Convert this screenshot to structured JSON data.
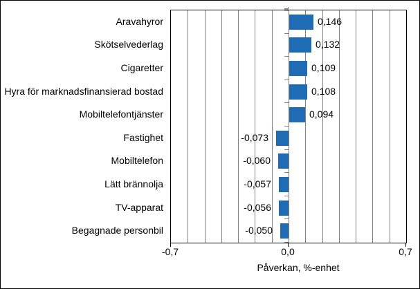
{
  "chart_data": {
    "type": "bar",
    "orientation": "horizontal",
    "title": "",
    "xlabel": "Påverkan, %-enhet",
    "ylabel": "",
    "categories": [
      "Aravahyror",
      "Skötselvederlag",
      "Cigaretter",
      "Hyra för marknadsfinansierad bostad",
      "Mobiltelefontjänster",
      "Fastighet",
      "Mobiltelefon",
      "Lätt brännolja",
      "TV-apparat",
      "Begagnade personbil"
    ],
    "values": [
      0.146,
      0.132,
      0.109,
      0.108,
      0.094,
      -0.073,
      -0.06,
      -0.057,
      -0.056,
      -0.05
    ],
    "value_labels": [
      "0,146",
      "0,132",
      "0,109",
      "0,108",
      "0,094",
      "-0,073",
      "-0,060",
      "-0,057",
      "-0,056",
      "-0,050"
    ],
    "xlim": [
      -0.7,
      0.7
    ],
    "x_ticks": [
      -0.7,
      0.0,
      0.7
    ],
    "x_tick_labels": [
      "-0,7",
      "0,0",
      "0,7"
    ],
    "gridline_interval": 0.1,
    "grid": true,
    "legend": "none",
    "bar_color": "#1F6BB4",
    "gridline_color": "#808080",
    "axis_color": "#000000",
    "background_color": "#FFFFFF"
  }
}
